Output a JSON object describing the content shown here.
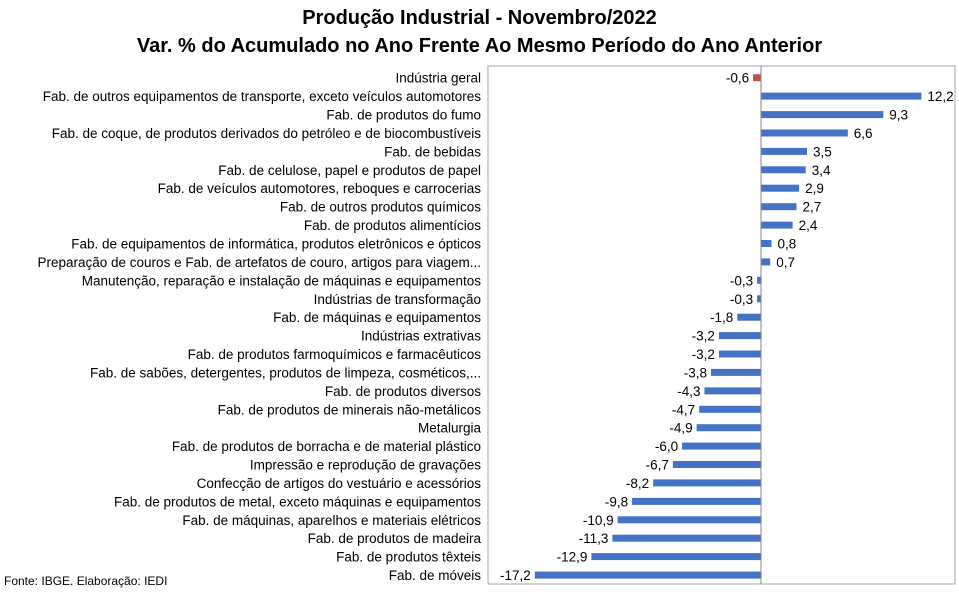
{
  "title": "Produção Industrial - Novembro/2022",
  "subtitle": "Var. % do Acumulado no Ano Frente Ao Mesmo Período do Ano Anterior",
  "source": "Fonte: IBGE. Elaboração: IEDI",
  "colors": {
    "positive": "#4472C4",
    "negative": "#4472C4",
    "highlight": "#C0504D",
    "grid": "#A6A6A6"
  },
  "chart_data": {
    "type": "bar",
    "orientation": "horizontal",
    "title": "Produção Industrial - Novembro/2022",
    "subtitle": "Var. % do Acumulado no Ano Frente Ao Mesmo Período do Ano Anterior",
    "xlim": [
      -18,
      13
    ],
    "grid": false,
    "categories": [
      "Indústria geral",
      "Fab. de outros equipamentos de transporte, exceto veículos automotores",
      "Fab. de produtos do fumo",
      "Fab. de coque, de produtos derivados do petróleo e de biocombustíveis",
      "Fab. de bebidas",
      "Fab. de celulose, papel e produtos de papel",
      "Fab. de veículos automotores, reboques e carrocerias",
      "Fab. de outros produtos químicos",
      "Fab. de produtos alimentícios",
      "Fab. de equipamentos de informática, produtos eletrônicos e ópticos",
      "Preparação de couros e Fab. de artefatos de couro, artigos para viagem...",
      "Manutenção, reparação e instalação de máquinas e equipamentos",
      "Indústrias de transformação",
      "Fab. de máquinas e equipamentos",
      "Indústrias extrativas",
      "Fab. de produtos farmoquímicos e farmacêuticos",
      "Fab. de sabões, detergentes, produtos de limpeza, cosméticos,...",
      "Fab. de produtos diversos",
      "Fab. de produtos de minerais não-metálicos",
      "Metalurgia",
      "Fab. de produtos de borracha e de material plástico",
      "Impressão e reprodução de gravações",
      "Confecção de artigos do vestuário e acessórios",
      "Fab. de produtos de metal, exceto máquinas e equipamentos",
      "Fab. de máquinas, aparelhos e materiais elétricos",
      "Fab. de produtos de madeira",
      "Fab. de produtos têxteis",
      "Fab. de móveis"
    ],
    "values": [
      -0.6,
      12.2,
      9.3,
      6.6,
      3.5,
      3.4,
      2.9,
      2.7,
      2.4,
      0.8,
      0.7,
      -0.3,
      -0.3,
      -1.8,
      -3.2,
      -3.2,
      -3.8,
      -4.3,
      -4.7,
      -4.9,
      -6.0,
      -6.7,
      -8.2,
      -9.8,
      -10.9,
      -11.3,
      -12.9,
      -17.2
    ],
    "value_labels": [
      "-0,6",
      "12,2",
      "9,3",
      "6,6",
      "3,5",
      "3,4",
      "2,9",
      "2,7",
      "2,4",
      "0,8",
      "0,7",
      "-0,3",
      "-0,3",
      "-1,8",
      "-3,2",
      "-3,2",
      "-3,8",
      "-4,3",
      "-4,7",
      "-4,9",
      "-6,0",
      "-6,7",
      "-8,2",
      "-9,8",
      "-10,9",
      "-11,3",
      "-12,9",
      "-17,2"
    ],
    "highlight_index": 0
  }
}
